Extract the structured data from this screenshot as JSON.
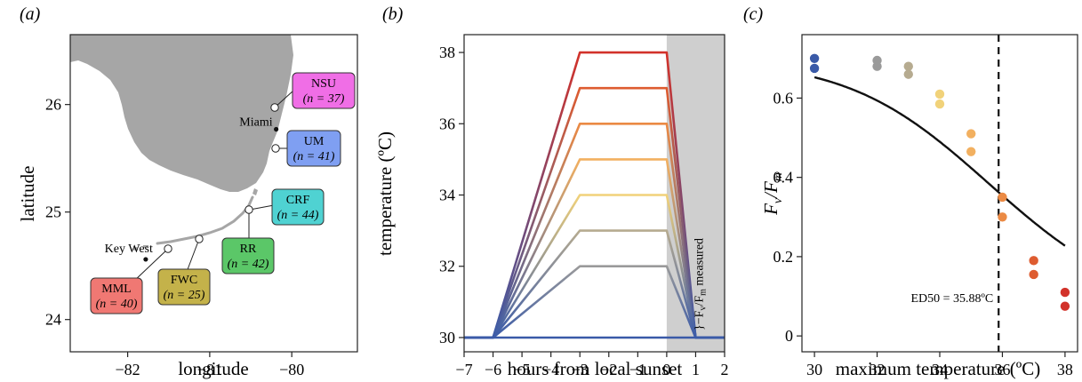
{
  "chart_data": [
    {
      "type": "map",
      "panel_label": "(a)",
      "xlabel": "longitude",
      "ylabel": "latitude",
      "xlim": [
        -82.7,
        -79.2
      ],
      "ylim": [
        23.7,
        26.65
      ],
      "xticks": [
        -82,
        -81,
        -80
      ],
      "yticks": [
        24,
        25,
        26
      ],
      "xtick_labels": [
        "−82",
        "−81",
        "−80"
      ],
      "yticks_labels": [
        "24",
        "25",
        "26"
      ],
      "cities": [
        {
          "name": "Miami",
          "lon": -80.19,
          "lat": 25.77
        },
        {
          "name": "Key West",
          "lon": -81.78,
          "lat": 24.56
        }
      ],
      "sites": [
        {
          "code": "NSU",
          "n": "(n = 37)",
          "lon": -80.11,
          "lat": 26.13,
          "color": "#f06ee6"
        },
        {
          "code": "UM",
          "n": "(n = 41)",
          "lon": -80.11,
          "lat": 25.68,
          "color": "#7f9ff2"
        },
        {
          "code": "CRF",
          "n": "(n = 44)",
          "lon": -80.42,
          "lat": 24.99,
          "color": "#4fd2d2"
        },
        {
          "code": "RR",
          "n": "(n = 42)",
          "lon": -80.42,
          "lat": 24.99,
          "color": "#5bc768"
        },
        {
          "code": "FWC",
          "n": "(n = 25)",
          "lon": -81.05,
          "lat": 24.67,
          "color": "#c4b24a"
        },
        {
          "code": "MML",
          "n": "(n = 40)",
          "lon": -81.41,
          "lat": 24.58,
          "color": "#f07873"
        }
      ]
    },
    {
      "type": "line",
      "panel_label": "(b)",
      "xlabel": "hours from local sunset",
      "ylabel": "temperature (ºC)",
      "xlim": [
        -7,
        2
      ],
      "ylim": [
        29.6,
        38.5
      ],
      "xticks": [
        -7,
        -6,
        -5,
        -4,
        -3,
        -2,
        -1,
        0,
        1,
        2
      ],
      "yticks": [
        30,
        32,
        34,
        36,
        38
      ],
      "xtick_labels": [
        "−7",
        "−6",
        "−5",
        "−4",
        "−3",
        "−2",
        "−1",
        "0",
        "1",
        "2"
      ],
      "yticks_labels": [
        "30",
        "32",
        "34",
        "36",
        "38"
      ],
      "shaded_region": [
        0,
        2
      ],
      "annotation": "}−F",
      "annotation_sub_v": "v",
      "annotation_slash": "/F",
      "annotation_sub_m": "m",
      "annotation_suffix": " measured",
      "baseline_temperature": 30,
      "profile_x": [
        -7,
        -6,
        -3,
        0,
        1,
        2
      ],
      "series": [
        {
          "max_temp": 30,
          "color": "#3a5aa8"
        },
        {
          "max_temp": 32,
          "color": "#9a9a9a"
        },
        {
          "max_temp": 33,
          "color": "#b6ab90"
        },
        {
          "max_temp": 34,
          "color": "#f1d27a"
        },
        {
          "max_temp": 35,
          "color": "#f2b060"
        },
        {
          "max_temp": 36,
          "color": "#eb8a44"
        },
        {
          "max_temp": 37,
          "color": "#de5c30"
        },
        {
          "max_temp": 38,
          "color": "#d2322a"
        }
      ]
    },
    {
      "type": "scatter",
      "panel_label": "(c)",
      "xlabel": "maximum temperature (ºC)",
      "ylabel_main": "F",
      "ylabel_sub_v": "v",
      "ylabel_slash": "/F",
      "ylabel_sub_m": "m",
      "xlim": [
        29.6,
        38.4
      ],
      "ylim": [
        -0.04,
        0.76
      ],
      "xticks": [
        30,
        32,
        34,
        36,
        38
      ],
      "yticks": [
        0,
        0.2,
        0.4,
        0.6
      ],
      "xtick_labels": [
        "30",
        "32",
        "34",
        "36",
        "38"
      ],
      "yticks_labels": [
        "0",
        "0.2",
        "0.4",
        "0.6"
      ],
      "ed50": 35.88,
      "ed50_label": "ED50 = 35.88ºC",
      "curve": {
        "upper": 0.695,
        "lower": 0.03,
        "ed50": 35.88,
        "hill": 15
      },
      "points": [
        {
          "x": 30,
          "y": 0.7,
          "color": "#3a5aa8"
        },
        {
          "x": 30,
          "y": 0.675,
          "color": "#3a5aa8"
        },
        {
          "x": 32,
          "y": 0.695,
          "color": "#9a9a9a"
        },
        {
          "x": 32,
          "y": 0.68,
          "color": "#9a9a9a"
        },
        {
          "x": 33,
          "y": 0.68,
          "color": "#b6ab90"
        },
        {
          "x": 33,
          "y": 0.66,
          "color": "#b6ab90"
        },
        {
          "x": 34,
          "y": 0.61,
          "color": "#f1d27a"
        },
        {
          "x": 34,
          "y": 0.585,
          "color": "#f1d27a"
        },
        {
          "x": 35,
          "y": 0.51,
          "color": "#f2b060"
        },
        {
          "x": 35,
          "y": 0.465,
          "color": "#f2b060"
        },
        {
          "x": 36,
          "y": 0.35,
          "color": "#eb8a44"
        },
        {
          "x": 36,
          "y": 0.3,
          "color": "#eb8a44"
        },
        {
          "x": 37,
          "y": 0.19,
          "color": "#de5c30"
        },
        {
          "x": 37,
          "y": 0.155,
          "color": "#de5c30"
        },
        {
          "x": 38,
          "y": 0.11,
          "color": "#d2322a"
        },
        {
          "x": 38,
          "y": 0.075,
          "color": "#d2322a"
        }
      ]
    }
  ]
}
